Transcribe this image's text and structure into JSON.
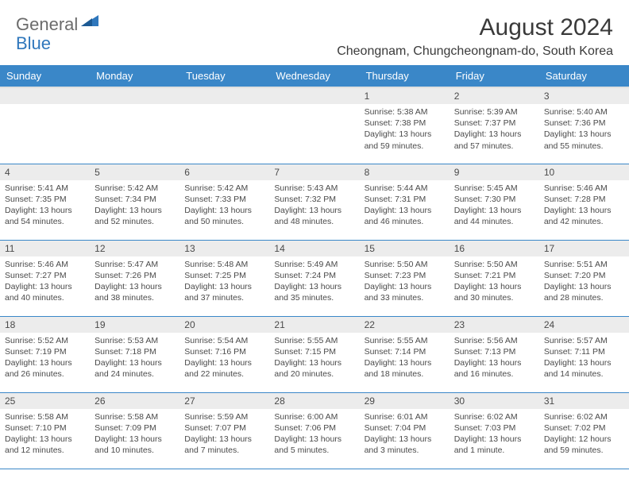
{
  "logo": {
    "general": "General",
    "blue": "Blue"
  },
  "title": "August 2024",
  "location": "Cheongnam, Chungcheongnam-do, South Korea",
  "colors": {
    "header_bg": "#3a87c8",
    "header_text": "#ffffff",
    "daynum_bg": "#ececec",
    "text": "#4a4a4a",
    "border": "#3a87c8",
    "logo_gray": "#6b6b6b",
    "logo_blue": "#2f77bc"
  },
  "weekdays": [
    "Sunday",
    "Monday",
    "Tuesday",
    "Wednesday",
    "Thursday",
    "Friday",
    "Saturday"
  ],
  "weeks": [
    [
      {
        "n": "",
        "sr": "",
        "ss": "",
        "dl": ""
      },
      {
        "n": "",
        "sr": "",
        "ss": "",
        "dl": ""
      },
      {
        "n": "",
        "sr": "",
        "ss": "",
        "dl": ""
      },
      {
        "n": "",
        "sr": "",
        "ss": "",
        "dl": ""
      },
      {
        "n": "1",
        "sr": "5:38 AM",
        "ss": "7:38 PM",
        "dl": "13 hours and 59 minutes."
      },
      {
        "n": "2",
        "sr": "5:39 AM",
        "ss": "7:37 PM",
        "dl": "13 hours and 57 minutes."
      },
      {
        "n": "3",
        "sr": "5:40 AM",
        "ss": "7:36 PM",
        "dl": "13 hours and 55 minutes."
      }
    ],
    [
      {
        "n": "4",
        "sr": "5:41 AM",
        "ss": "7:35 PM",
        "dl": "13 hours and 54 minutes."
      },
      {
        "n": "5",
        "sr": "5:42 AM",
        "ss": "7:34 PM",
        "dl": "13 hours and 52 minutes."
      },
      {
        "n": "6",
        "sr": "5:42 AM",
        "ss": "7:33 PM",
        "dl": "13 hours and 50 minutes."
      },
      {
        "n": "7",
        "sr": "5:43 AM",
        "ss": "7:32 PM",
        "dl": "13 hours and 48 minutes."
      },
      {
        "n": "8",
        "sr": "5:44 AM",
        "ss": "7:31 PM",
        "dl": "13 hours and 46 minutes."
      },
      {
        "n": "9",
        "sr": "5:45 AM",
        "ss": "7:30 PM",
        "dl": "13 hours and 44 minutes."
      },
      {
        "n": "10",
        "sr": "5:46 AM",
        "ss": "7:28 PM",
        "dl": "13 hours and 42 minutes."
      }
    ],
    [
      {
        "n": "11",
        "sr": "5:46 AM",
        "ss": "7:27 PM",
        "dl": "13 hours and 40 minutes."
      },
      {
        "n": "12",
        "sr": "5:47 AM",
        "ss": "7:26 PM",
        "dl": "13 hours and 38 minutes."
      },
      {
        "n": "13",
        "sr": "5:48 AM",
        "ss": "7:25 PM",
        "dl": "13 hours and 37 minutes."
      },
      {
        "n": "14",
        "sr": "5:49 AM",
        "ss": "7:24 PM",
        "dl": "13 hours and 35 minutes."
      },
      {
        "n": "15",
        "sr": "5:50 AM",
        "ss": "7:23 PM",
        "dl": "13 hours and 33 minutes."
      },
      {
        "n": "16",
        "sr": "5:50 AM",
        "ss": "7:21 PM",
        "dl": "13 hours and 30 minutes."
      },
      {
        "n": "17",
        "sr": "5:51 AM",
        "ss": "7:20 PM",
        "dl": "13 hours and 28 minutes."
      }
    ],
    [
      {
        "n": "18",
        "sr": "5:52 AM",
        "ss": "7:19 PM",
        "dl": "13 hours and 26 minutes."
      },
      {
        "n": "19",
        "sr": "5:53 AM",
        "ss": "7:18 PM",
        "dl": "13 hours and 24 minutes."
      },
      {
        "n": "20",
        "sr": "5:54 AM",
        "ss": "7:16 PM",
        "dl": "13 hours and 22 minutes."
      },
      {
        "n": "21",
        "sr": "5:55 AM",
        "ss": "7:15 PM",
        "dl": "13 hours and 20 minutes."
      },
      {
        "n": "22",
        "sr": "5:55 AM",
        "ss": "7:14 PM",
        "dl": "13 hours and 18 minutes."
      },
      {
        "n": "23",
        "sr": "5:56 AM",
        "ss": "7:13 PM",
        "dl": "13 hours and 16 minutes."
      },
      {
        "n": "24",
        "sr": "5:57 AM",
        "ss": "7:11 PM",
        "dl": "13 hours and 14 minutes."
      }
    ],
    [
      {
        "n": "25",
        "sr": "5:58 AM",
        "ss": "7:10 PM",
        "dl": "13 hours and 12 minutes."
      },
      {
        "n": "26",
        "sr": "5:58 AM",
        "ss": "7:09 PM",
        "dl": "13 hours and 10 minutes."
      },
      {
        "n": "27",
        "sr": "5:59 AM",
        "ss": "7:07 PM",
        "dl": "13 hours and 7 minutes."
      },
      {
        "n": "28",
        "sr": "6:00 AM",
        "ss": "7:06 PM",
        "dl": "13 hours and 5 minutes."
      },
      {
        "n": "29",
        "sr": "6:01 AM",
        "ss": "7:04 PM",
        "dl": "13 hours and 3 minutes."
      },
      {
        "n": "30",
        "sr": "6:02 AM",
        "ss": "7:03 PM",
        "dl": "13 hours and 1 minute."
      },
      {
        "n": "31",
        "sr": "6:02 AM",
        "ss": "7:02 PM",
        "dl": "12 hours and 59 minutes."
      }
    ]
  ],
  "labels": {
    "sunrise": "Sunrise:",
    "sunset": "Sunset:",
    "daylight": "Daylight:"
  }
}
